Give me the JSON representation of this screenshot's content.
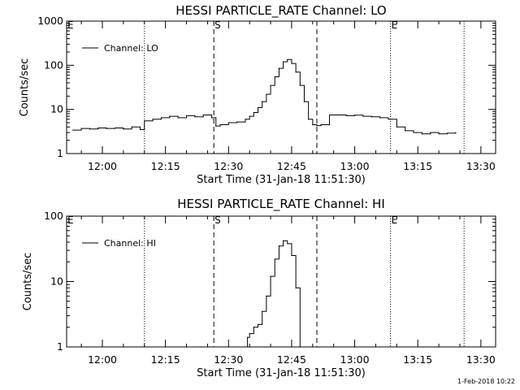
{
  "chart_data": [
    {
      "type": "line",
      "title": "HESSI PARTICLE_RATE Channel: LO",
      "xlabel": "Start Time (31-Jan-18 11:51:30)",
      "ylabel": "Counts/sec",
      "y_scale": "log",
      "ylim": [
        1,
        1000
      ],
      "xlim": [
        "11:51:30",
        "13:33:30"
      ],
      "x_tick_labels": [
        "12:00",
        "12:15",
        "12:30",
        "12:45",
        "13:00",
        "13:15",
        "13:30"
      ],
      "x_tick_values": [
        "12:00",
        "12:15",
        "12:30",
        "12:45",
        "13:00",
        "13:15",
        "13:30"
      ],
      "y_tick_labels": [
        "1",
        "10",
        "100",
        "1000"
      ],
      "y_tick_values": [
        1,
        10,
        100,
        1000
      ],
      "legend": {
        "position": "top-left",
        "entries": [
          "Channel: LO"
        ]
      },
      "series": [
        {
          "name": "Channel: LO",
          "x": [
            "11:53:00",
            "11:55:00",
            "11:57:00",
            "11:59:00",
            "12:01:00",
            "12:03:00",
            "12:05:00",
            "12:07:00",
            "12:09:00",
            "12:10:00",
            "12:12:00",
            "12:14:00",
            "12:16:00",
            "12:18:00",
            "12:20:00",
            "12:22:00",
            "12:24:00",
            "12:26:00",
            "12:27:00",
            "12:28:00",
            "12:30:00",
            "12:32:00",
            "12:34:00",
            "12:35:00",
            "12:36:00",
            "12:37:00",
            "12:38:00",
            "12:39:00",
            "12:40:00",
            "12:41:00",
            "12:42:00",
            "12:43:00",
            "12:44:00",
            "12:45:00",
            "12:46:00",
            "12:47:00",
            "12:48:00",
            "12:49:00",
            "12:50:00",
            "12:51:00",
            "12:52:00",
            "12:54:00",
            "12:56:00",
            "12:58:00",
            "13:00:00",
            "13:02:00",
            "13:04:00",
            "13:06:00",
            "13:08:00",
            "13:10:00",
            "13:12:00",
            "13:14:00",
            "13:16:00",
            "13:18:00",
            "13:20:00",
            "13:22:00",
            "13:24:00"
          ],
          "y": [
            3.4,
            3.7,
            3.6,
            3.8,
            3.7,
            3.8,
            3.6,
            4.0,
            3.5,
            5.5,
            6.0,
            6.5,
            7.0,
            6.5,
            7.2,
            6.8,
            7.5,
            6.5,
            4.2,
            4.5,
            5.0,
            5.2,
            6.0,
            7.0,
            8.5,
            11,
            15,
            22,
            35,
            55,
            85,
            120,
            135,
            110,
            70,
            35,
            15,
            6,
            4.5,
            4.3,
            4.5,
            7.5,
            7.5,
            7.2,
            7.4,
            7.0,
            6.8,
            6.5,
            6.0,
            4.0,
            3.3,
            3.0,
            2.8,
            3.0,
            2.8,
            2.9,
            3.0
          ]
        }
      ],
      "markers": [
        {
          "label": "E",
          "x": "11:51:30",
          "style": "dotted"
        },
        {
          "label": "",
          "x": "12:10:00",
          "style": "dotted"
        },
        {
          "label": "S",
          "x": "12:26:30",
          "style": "dashed"
        },
        {
          "label": "",
          "x": "12:51:00",
          "style": "dashed"
        },
        {
          "label": "E",
          "x": "13:08:30",
          "style": "dotted"
        },
        {
          "label": "",
          "x": "13:26:00",
          "style": "dotted"
        }
      ]
    },
    {
      "type": "line",
      "title": "HESSI PARTICLE_RATE Channel: HI",
      "xlabel": "Start Time (31-Jan-18 11:51:30)",
      "ylabel": "Counts/sec",
      "y_scale": "log",
      "ylim": [
        1,
        100
      ],
      "xlim": [
        "11:51:30",
        "13:33:30"
      ],
      "x_tick_labels": [
        "12:00",
        "12:15",
        "12:30",
        "12:45",
        "13:00",
        "13:15",
        "13:30"
      ],
      "x_tick_values": [
        "12:00",
        "12:15",
        "12:30",
        "12:45",
        "13:00",
        "13:15",
        "13:30"
      ],
      "y_tick_labels": [
        "1",
        "10",
        "100"
      ],
      "y_tick_values": [
        1,
        10,
        100
      ],
      "legend": {
        "position": "top-left",
        "entries": [
          "Channel: HI"
        ]
      },
      "series": [
        {
          "name": "Channel: HI",
          "x": [
            "12:34:00",
            "12:34:30",
            "12:35:00",
            "12:36:00",
            "12:37:00",
            "12:38:00",
            "12:39:00",
            "12:40:00",
            "12:41:00",
            "12:42:00",
            "12:43:00",
            "12:44:00",
            "12:45:00",
            "12:46:00",
            "12:47:00"
          ],
          "y": [
            1.0,
            1.4,
            1.6,
            2.0,
            2.2,
            3.5,
            6.0,
            12,
            22,
            35,
            42,
            38,
            25,
            8,
            1.0
          ]
        }
      ],
      "markers": [
        {
          "label": "E",
          "x": "11:51:30",
          "style": "dotted"
        },
        {
          "label": "",
          "x": "12:10:00",
          "style": "dotted"
        },
        {
          "label": "S",
          "x": "12:26:30",
          "style": "dashed"
        },
        {
          "label": "",
          "x": "12:51:00",
          "style": "dashed"
        },
        {
          "label": "E",
          "x": "13:08:30",
          "style": "dotted"
        },
        {
          "label": "",
          "x": "13:26:00",
          "style": "dotted"
        }
      ]
    }
  ],
  "footer": {
    "timestamp": "1-Feb-2018 10:22"
  }
}
